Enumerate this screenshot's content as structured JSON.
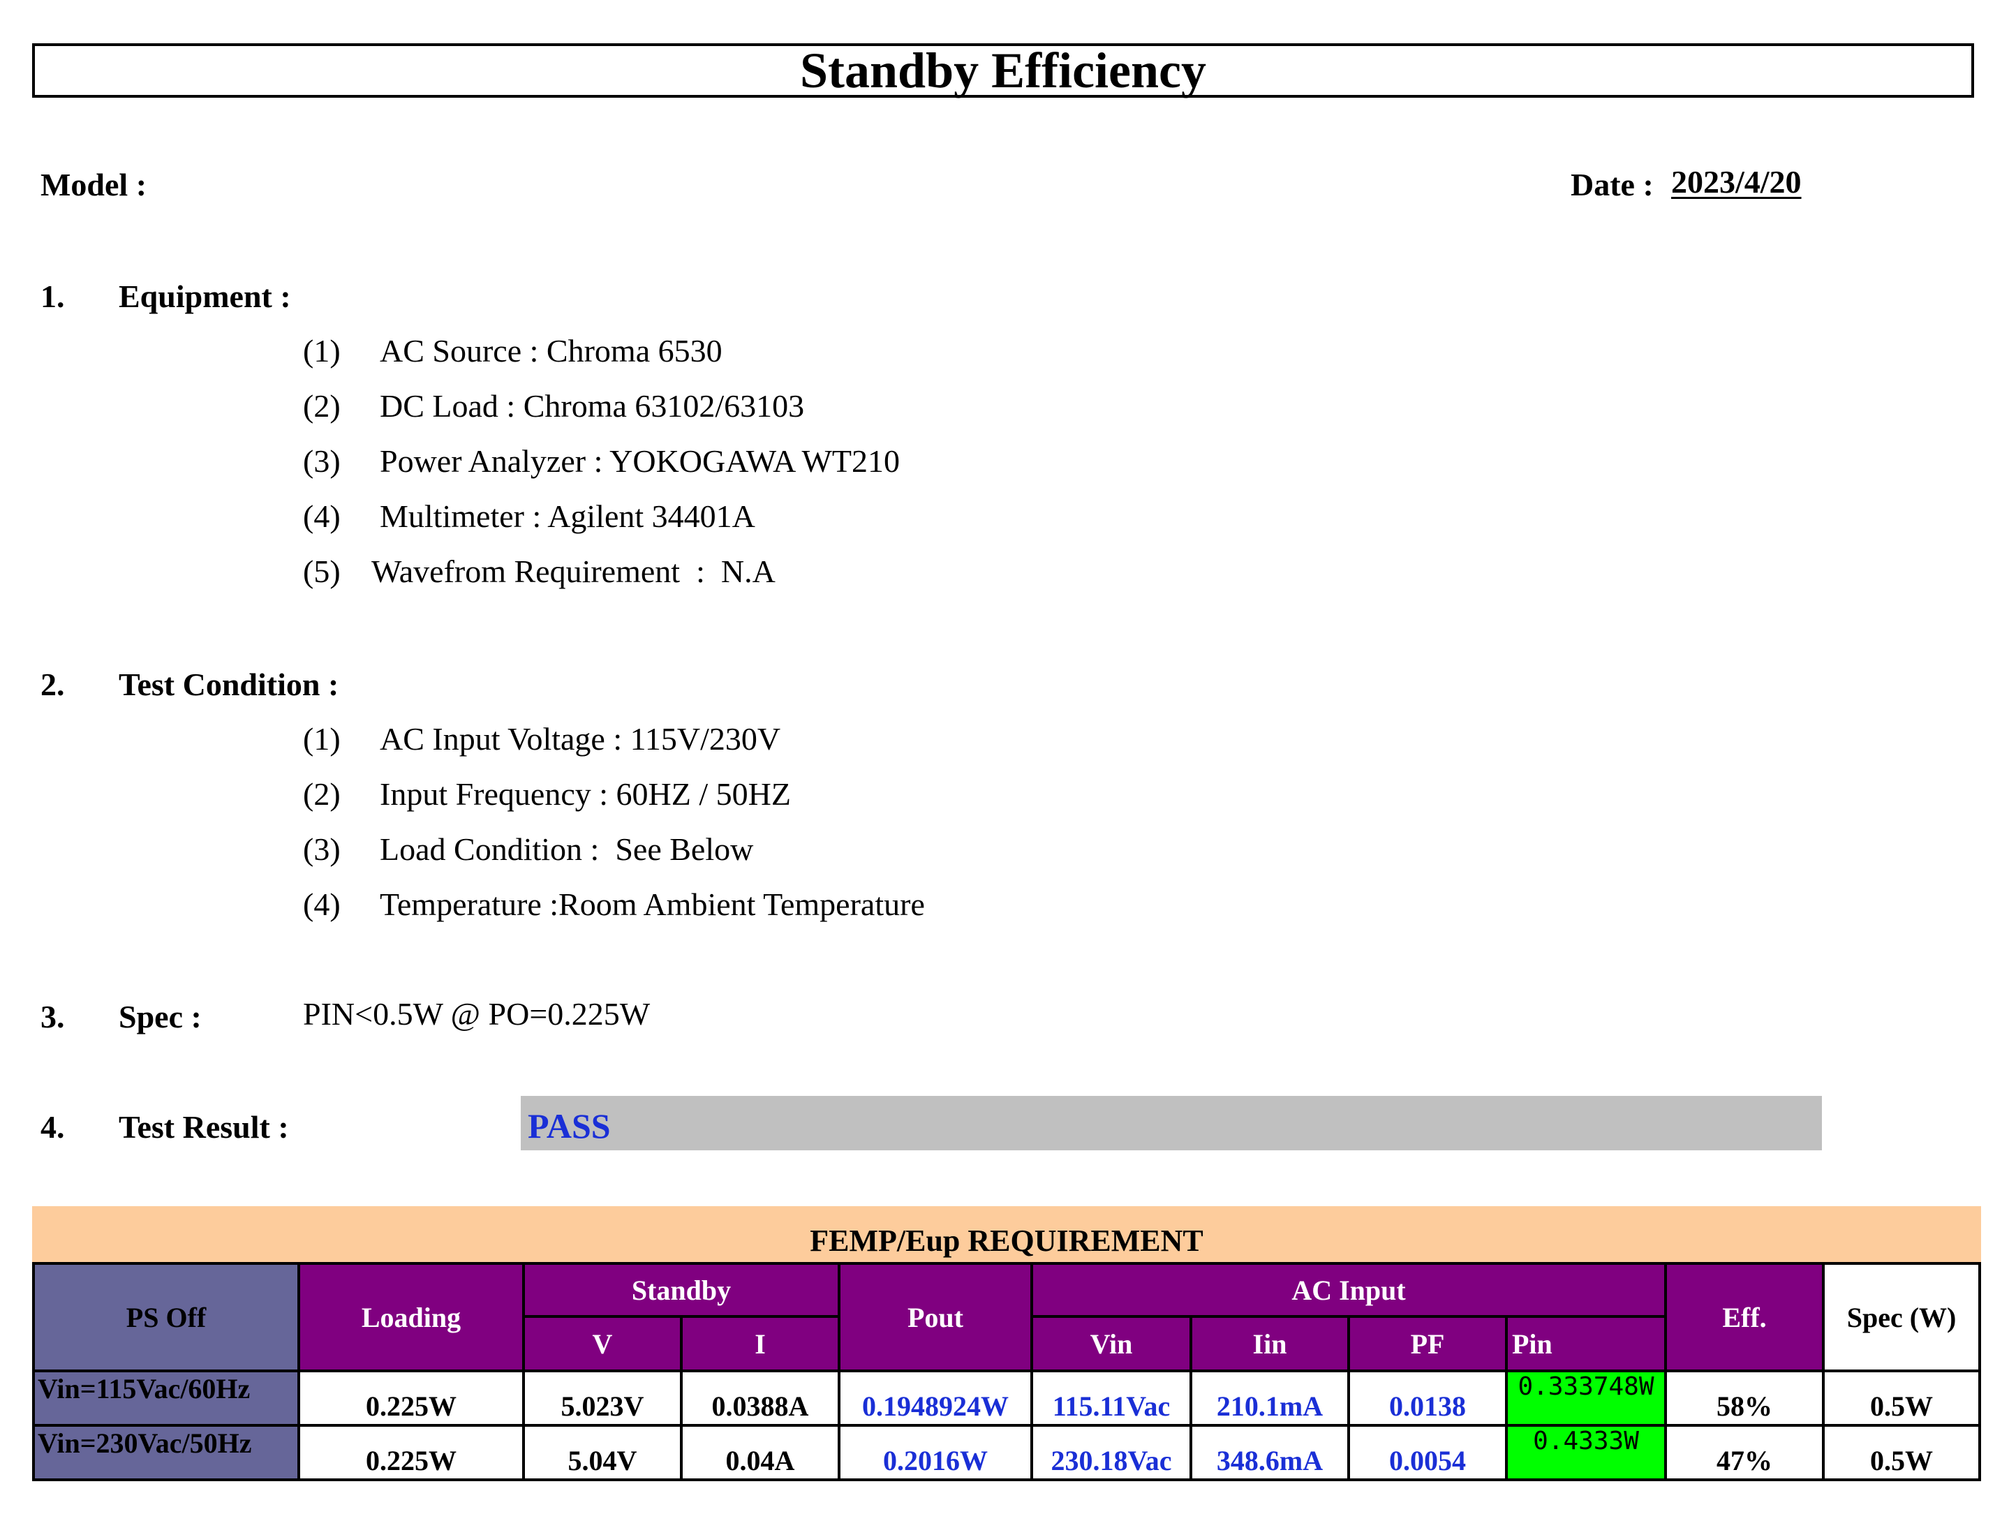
{
  "title": "Standby Efficiency",
  "model_label": "Model :",
  "date_label": "Date :",
  "date_value": "2023/4/20",
  "sections": {
    "s1": {
      "num": "1.",
      "label": "Equipment :",
      "items": [
        {
          "num": "(1)",
          "text": "AC Source : Chroma 6530"
        },
        {
          "num": "(2)",
          "text": "DC Load : Chroma 63102/63103"
        },
        {
          "num": "(3)",
          "text": "Power Analyzer : YOKOGAWA WT210"
        },
        {
          "num": "(4)",
          "text": "Multimeter : Agilent 34401A"
        },
        {
          "num": "(5)",
          "text": "Wavefrom Requirement  :  N.A"
        }
      ]
    },
    "s2": {
      "num": "2.",
      "label": "Test Condition :",
      "items": [
        {
          "num": "(1)",
          "text": "AC Input Voltage : 115V/230V"
        },
        {
          "num": "(2)",
          "text": "Input Frequency : 60HZ / 50HZ"
        },
        {
          "num": "(3)",
          "text": "Load Condition :  See Below"
        },
        {
          "num": "(4)",
          "text": "Temperature :Room Ambient Temperature"
        }
      ]
    },
    "s3": {
      "num": "3.",
      "label": "Spec :",
      "value": "PIN<0.5W @ PO=0.225W"
    },
    "s4": {
      "num": "4.",
      "label": "Test Result :",
      "value": "PASS"
    }
  },
  "table": {
    "band_title": "FEMP/Eup REQUIREMENT",
    "headers": {
      "ps_off": "PS Off",
      "loading": "Loading",
      "standby": "Standby",
      "v": "V",
      "i": "I",
      "pout": "Pout",
      "ac_input": "AC Input",
      "vin": "Vin",
      "iin": "Iin",
      "pf": "PF",
      "pin": "Pin",
      "eff": "Eff.",
      "spec": "Spec (W)"
    },
    "rows": [
      {
        "label": "Vin=115Vac/60Hz",
        "loading": "0.225W",
        "v": "5.023V",
        "i": "0.0388A",
        "pout": "0.1948924W",
        "vin": "115.11Vac",
        "iin": "210.1mA",
        "pf": "0.0138",
        "pin": "0.333748W",
        "eff": "58%",
        "spec": "0.5W"
      },
      {
        "label": "Vin=230Vac/50Hz",
        "loading": "0.225W",
        "v": "5.04V",
        "i": "0.04A",
        "pout": "0.2016W",
        "vin": "230.18Vac",
        "iin": "348.6mA",
        "pf": "0.0054",
        "pin": "0.4333W",
        "eff": "47%",
        "spec": "0.5W"
      }
    ]
  },
  "colors": {
    "header_purple": "#800080",
    "ps_off_slate": "#666699",
    "band_peach": "#fdcc9c",
    "pin_green": "#00ff00",
    "value_blue": "#1a2fd6",
    "result_bar_gray": "#c0c0c0"
  }
}
